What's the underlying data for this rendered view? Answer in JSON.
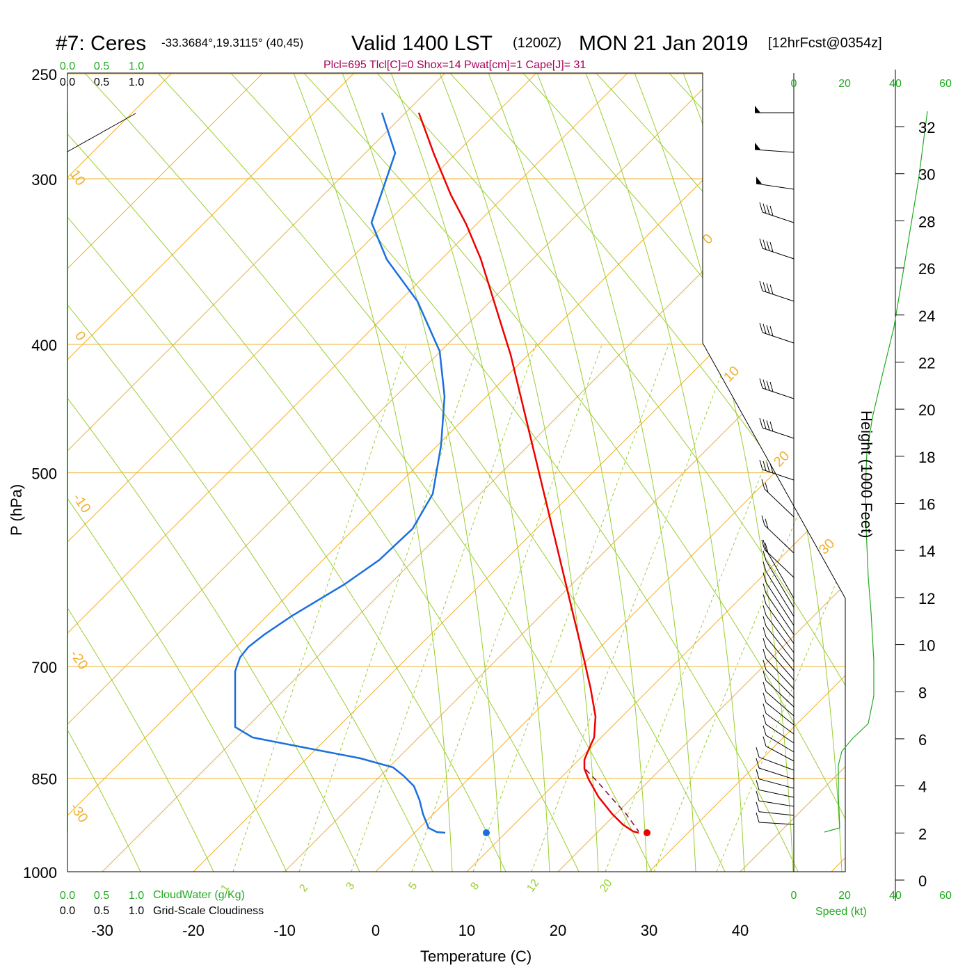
{
  "header": {
    "station": "#7: Ceres",
    "coords": "-33.3684°,19.3115° (40,45)",
    "valid": "Valid 1400 LST",
    "zulu": "(1200Z)",
    "date": "MON 21 Jan 2019",
    "forecast": "[12hrFcst@0354z]",
    "indices": "Plcl=695 Tlcl[C]=0 Shox=14 Pwat[cm]=1 Cape[J]= 31"
  },
  "labels": {
    "xlabel": "Temperature (C)",
    "ylabel": "P (hPa)",
    "right_ylabel": "Height (1000 Feet)",
    "cloudwater": "CloudWater (g/Kg)",
    "cloudiness": "Grid-Scale Cloudiness",
    "speed": "Speed (kt)"
  },
  "scales": {
    "cloud_ticks": [
      "0.0",
      "0.5",
      "1.0"
    ],
    "speed_ticks": [
      "0",
      "20",
      "40",
      "60"
    ]
  },
  "colors": {
    "isotherm": "#f0b030",
    "dry_adiabat": "#9acd32",
    "moist_adiabat": "#9acd32",
    "mixing_ratio": "#9acd32",
    "temperature": "#ee0000",
    "dewpoint": "#1a6ee0",
    "parcel": "#880044",
    "wind_speed": "#22aa22",
    "indices_text": "#aa0055"
  },
  "chart_data": {
    "type": "skew-t",
    "ylim": [
      1000,
      250
    ],
    "xlim": [
      -35,
      40
    ],
    "x_ticks": [
      "-30",
      "-20",
      "-10",
      "0",
      "10",
      "20",
      "30",
      "40"
    ],
    "pressure_ticks": [
      "250",
      "300",
      "400",
      "500",
      "700",
      "850",
      "1000"
    ],
    "height_ticks_kft": [
      "0",
      "2",
      "4",
      "6",
      "8",
      "10",
      "12",
      "14",
      "16",
      "18",
      "20",
      "22",
      "24",
      "26",
      "28",
      "30",
      "32"
    ],
    "mixing_ratio_labels": [
      "1",
      "2",
      "3",
      "5",
      "8",
      "12",
      "20"
    ],
    "isotherm_labels": [
      "10",
      "0",
      "-10",
      "-20",
      "-30",
      "0",
      "10",
      "20",
      "30"
    ],
    "surface_temperature_C": 30,
    "surface_dewpoint_C": 12,
    "series": []
  }
}
